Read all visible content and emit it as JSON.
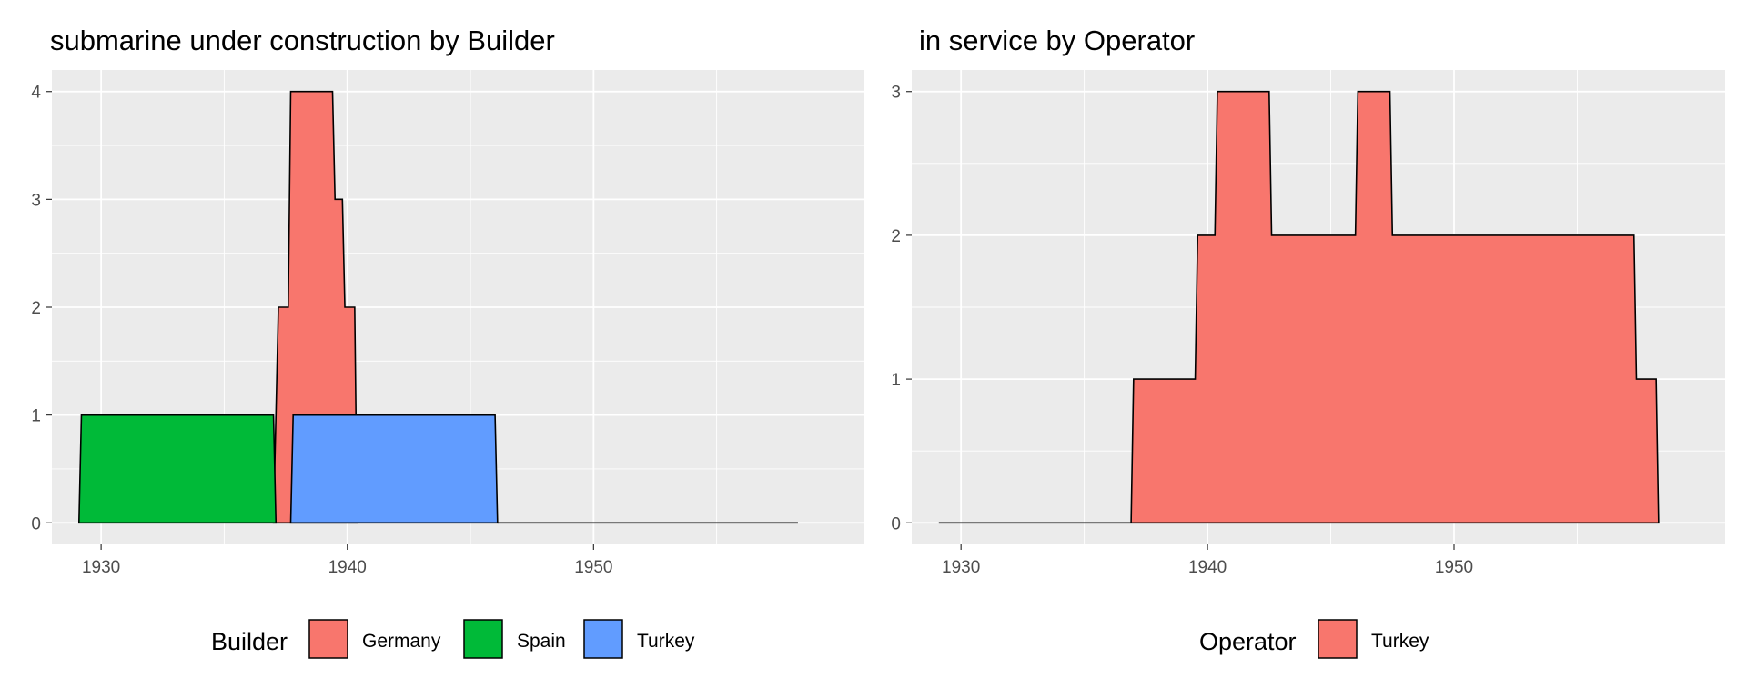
{
  "chart_data": [
    {
      "type": "area",
      "title": "submarine under construction by Builder",
      "xlabel": "",
      "ylabel": "",
      "xlim": [
        1928,
        1961
      ],
      "ylim": [
        -0.2,
        4.2
      ],
      "x_ticks": [
        1930,
        1940,
        1950
      ],
      "y_ticks": [
        0,
        1,
        2,
        3,
        4
      ],
      "grid": true,
      "legend": {
        "title": "Builder",
        "position": "bottom",
        "entries": [
          "Germany",
          "Spain",
          "Turkey"
        ]
      },
      "series": [
        {
          "name": "Germany",
          "color": "#F8766D",
          "points": [
            [
              1937.0,
              0
            ],
            [
              1937.2,
              2
            ],
            [
              1937.6,
              2
            ],
            [
              1937.7,
              4
            ],
            [
              1939.4,
              4
            ],
            [
              1939.5,
              3
            ],
            [
              1939.8,
              3
            ],
            [
              1939.9,
              2
            ],
            [
              1940.3,
              2
            ],
            [
              1940.4,
              0
            ]
          ]
        },
        {
          "name": "Spain",
          "color": "#00BA38",
          "points": [
            [
              1929.1,
              0
            ],
            [
              1929.2,
              1
            ],
            [
              1937.0,
              1
            ],
            [
              1937.1,
              0
            ]
          ]
        },
        {
          "name": "Turkey",
          "color": "#619CFF",
          "points": [
            [
              1937.7,
              0
            ],
            [
              1937.8,
              1
            ],
            [
              1946.0,
              1
            ],
            [
              1946.1,
              0
            ]
          ]
        },
        {
          "name": "",
          "color": "none",
          "points": [
            [
              1946.1,
              0
            ],
            [
              1958.3,
              0
            ]
          ]
        }
      ]
    },
    {
      "type": "area",
      "title": "in service by Operator",
      "xlabel": "",
      "ylabel": "",
      "xlim": [
        1928,
        1961
      ],
      "ylim": [
        -0.15,
        3.15
      ],
      "x_ticks": [
        1930,
        1940,
        1950
      ],
      "y_ticks": [
        0,
        1,
        2,
        3
      ],
      "grid": true,
      "legend": {
        "title": "Operator",
        "position": "bottom",
        "entries": [
          "Turkey"
        ]
      },
      "series": [
        {
          "name": "Turkey",
          "color": "#F8766D",
          "points": [
            [
              1929.1,
              0
            ],
            [
              1936.9,
              0
            ],
            [
              1937.0,
              1
            ],
            [
              1939.5,
              1
            ],
            [
              1939.6,
              2
            ],
            [
              1940.3,
              2
            ],
            [
              1940.4,
              3
            ],
            [
              1942.5,
              3
            ],
            [
              1942.6,
              2
            ],
            [
              1946.0,
              2
            ],
            [
              1946.1,
              3
            ],
            [
              1947.4,
              3
            ],
            [
              1947.5,
              2
            ],
            [
              1957.3,
              2
            ],
            [
              1957.4,
              1
            ],
            [
              1958.2,
              1
            ],
            [
              1958.3,
              0
            ]
          ]
        }
      ]
    }
  ],
  "colors": {
    "panel_background": "#EBEBEB",
    "grid_major": "#FFFFFF",
    "outline": "#000000"
  }
}
